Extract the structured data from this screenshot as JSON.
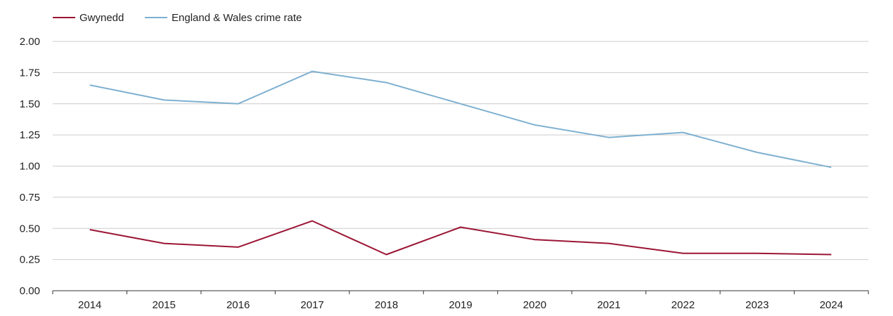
{
  "chart_data": {
    "type": "line",
    "title": "",
    "xlabel": "",
    "ylabel": "",
    "categories": [
      "2014",
      "2015",
      "2016",
      "2017",
      "2018",
      "2019",
      "2020",
      "2021",
      "2022",
      "2023",
      "2024"
    ],
    "ylim": [
      0,
      2
    ],
    "yticks": [
      "0.00",
      "0.25",
      "0.50",
      "0.75",
      "1.00",
      "1.25",
      "1.50",
      "1.75",
      "2.00"
    ],
    "ytick_values": [
      0,
      0.25,
      0.5,
      0.75,
      1.0,
      1.25,
      1.5,
      1.75,
      2.0
    ],
    "grid": true,
    "legend_position": "top-left",
    "series": [
      {
        "name": "Gwynedd",
        "color": "#9b1535",
        "values": [
          0.49,
          0.38,
          0.35,
          0.56,
          0.29,
          0.51,
          0.41,
          0.38,
          0.3,
          0.3,
          0.29
        ]
      },
      {
        "name": "England & Wales crime rate",
        "color": "#7eb0d0",
        "values": [
          1.65,
          1.53,
          1.5,
          1.76,
          1.67,
          1.5,
          1.33,
          1.23,
          1.27,
          1.11,
          0.99
        ]
      }
    ],
    "gridline_color": "#cccccc",
    "axis_color": "#333333"
  }
}
